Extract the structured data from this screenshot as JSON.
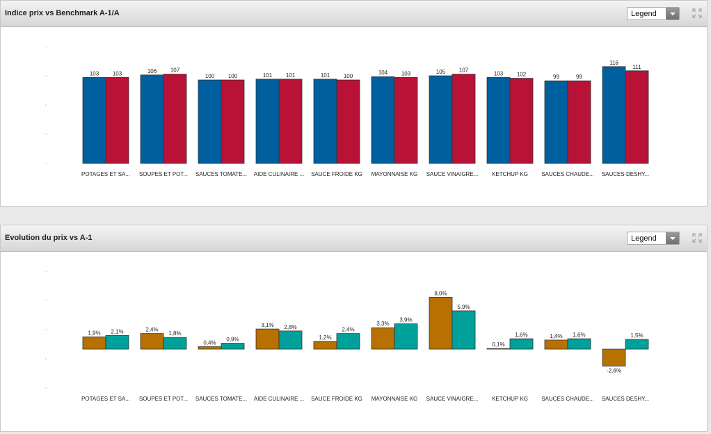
{
  "panels": [
    {
      "title": "Indice prix vs Benchmark A-1/A",
      "legend_label": "Legend",
      "icons": {
        "expand": "expand-arrows-icon",
        "legend_dropdown": "chevron-down-icon"
      }
    },
    {
      "title": "Evolution du prix vs A-1",
      "legend_label": "Legend",
      "icons": {
        "expand": "expand-arrows-icon",
        "legend_dropdown": "chevron-down-icon"
      }
    }
  ],
  "chart_data": [
    {
      "type": "bar",
      "title": "Indice prix vs Benchmark A-1/A",
      "categories": [
        "POTAGES ET SA...",
        "SOUPES ET POT...",
        "SAUCES TOMATE...",
        "AIDE CULINAIRE ...",
        "SAUCE FROIDE KG",
        "MAYONNAISE KG",
        "SAUCE VINAIGRE...",
        "KETCHUP KG",
        "SAUCES CHAUDE...",
        "SAUCES DESHY..."
      ],
      "series": [
        {
          "values": [
            103,
            106,
            100,
            101,
            101,
            104,
            105,
            103,
            99,
            116
          ],
          "labels": [
            "103",
            "106",
            "100",
            "101",
            "101",
            "104",
            "105",
            "103",
            "99",
            "116"
          ],
          "color": "#005f9e"
        },
        {
          "values": [
            103,
            107,
            100,
            101,
            100,
            103,
            107,
            102,
            99,
            111
          ],
          "labels": [
            "103",
            "107",
            "100",
            "101",
            "100",
            "103",
            "107",
            "102",
            "99",
            "111"
          ],
          "color": "#b81236"
        }
      ],
      "ylim": [
        0,
        140
      ],
      "grid": false
    },
    {
      "type": "bar",
      "title": "Evolution du prix vs A-1",
      "categories": [
        "POTAGES ET SA...",
        "SOUPES ET POT...",
        "SAUCES TOMATE...",
        "AIDE CULINAIRE ...",
        "SAUCE FROIDE KG",
        "MAYONNAISE KG",
        "SAUCE VINAIGRE...",
        "KETCHUP KG",
        "SAUCES CHAUDE...",
        "SAUCES DESHY..."
      ],
      "series": [
        {
          "values": [
            1.9,
            2.4,
            0.4,
            3.1,
            1.2,
            3.3,
            8.0,
            0.1,
            1.4,
            -2.6
          ],
          "labels": [
            "1,9%",
            "2,4%",
            "0,4%",
            "3,1%",
            "1,2%",
            "3,3%",
            "8,0%",
            "0,1%",
            "1,4%",
            "-2,6%"
          ],
          "color": "#b87000"
        },
        {
          "values": [
            2.1,
            1.8,
            0.9,
            2.8,
            2.4,
            3.9,
            5.9,
            1.6,
            1.6,
            1.5
          ],
          "labels": [
            "2,1%",
            "1,8%",
            "0,9%",
            "2,8%",
            "2,4%",
            "3,9%",
            "5,9%",
            "1,6%",
            "1,6%",
            "1,5%"
          ],
          "color": "#00a19a"
        }
      ],
      "ylim": [
        -6,
        12
      ],
      "grid": false
    }
  ]
}
